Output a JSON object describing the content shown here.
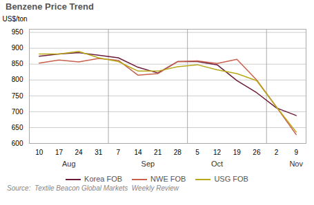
{
  "chart_data": {
    "type": "line",
    "title": "Benzene Price Trend",
    "ylabel": "US$/ton",
    "source": "Source:  Textile Beacon Global Markets  Weekly Review",
    "categories": [
      "10",
      "17",
      "24",
      "31",
      "7",
      "14",
      "21",
      "28",
      "5",
      "12",
      "19",
      "26",
      "2",
      "9"
    ],
    "series": [
      {
        "name": "Korea FOB",
        "color": "#6B1A3A",
        "values": [
          875,
          882,
          886,
          878,
          870,
          840,
          822,
          858,
          858,
          848,
          798,
          760,
          712,
          688
        ]
      },
      {
        "name": "NWE FOB",
        "color": "#C8604A",
        "values": [
          853,
          863,
          857,
          868,
          862,
          815,
          820,
          858,
          860,
          852,
          865,
          800,
          715,
          628
        ]
      },
      {
        "name": "USG FOB",
        "color": "#B8A818",
        "values": [
          882,
          882,
          890,
          870,
          858,
          828,
          828,
          842,
          848,
          832,
          820,
          798,
          715,
          636
        ]
      }
    ],
    "ylim": [
      600,
      960
    ],
    "yticks": [
      600,
      650,
      700,
      750,
      800,
      850,
      900,
      950
    ],
    "grid": true,
    "legend": "bottom",
    "annotations": [
      {
        "text": "Aug",
        "x": 1.5
      },
      {
        "text": "Sep",
        "x": 5.5
      },
      {
        "text": "Oct",
        "x": 9.0
      },
      {
        "text": "Nov",
        "x": 13.0
      }
    ],
    "separators": [
      3.5,
      7.5,
      11.5
    ]
  }
}
